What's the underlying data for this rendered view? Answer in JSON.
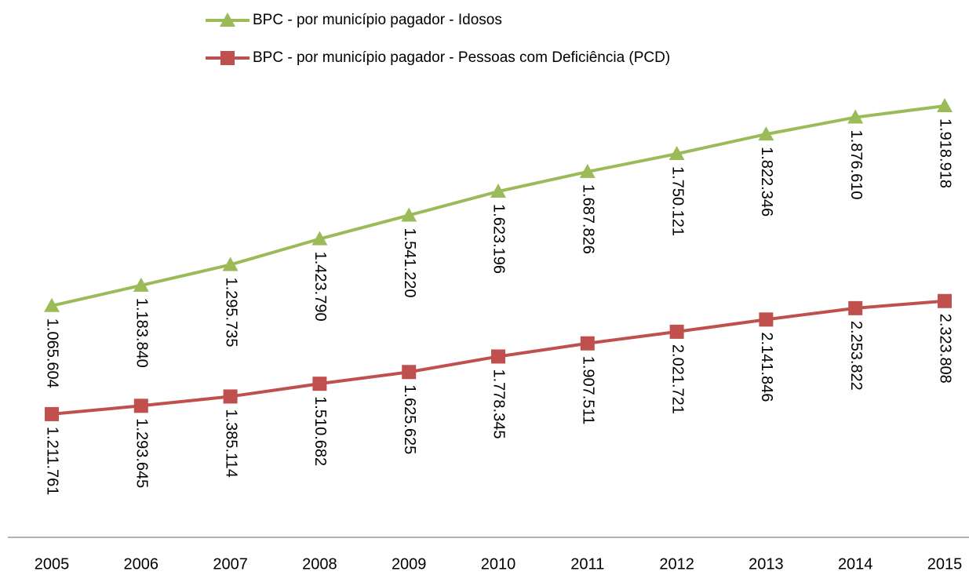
{
  "chart_data": {
    "type": "line",
    "stacked": true,
    "categories": [
      "2005",
      "2006",
      "2007",
      "2008",
      "2009",
      "2010",
      "2011",
      "2012",
      "2013",
      "2014",
      "2015"
    ],
    "series": [
      {
        "name": "BPC  - por município pagador - Idosos",
        "color": "#9bbb59",
        "marker": "triangle",
        "values": [
          1065604,
          1183840,
          1295735,
          1423790,
          1541220,
          1623196,
          1687826,
          1750121,
          1822346,
          1876610,
          1918918
        ],
        "value_labels": [
          "1.065.604",
          "1.183.840",
          "1.295.735",
          "1.423.790",
          "1.541.220",
          "1.623.196",
          "1.687.826",
          "1.750.121",
          "1.822.346",
          "1.876.610",
          "1.918.918"
        ]
      },
      {
        "name": "BPC  - por município pagador - Pessoas com Deficiência (PCD)",
        "color": "#c0504d",
        "marker": "square",
        "values": [
          1211761,
          1293645,
          1385114,
          1510682,
          1625625,
          1778345,
          1907511,
          2021721,
          2141846,
          2253822,
          2323808
        ],
        "value_labels": [
          "1.211.761",
          "1.293.645",
          "1.385.114",
          "1.510.682",
          "1.625.625",
          "1.778.345",
          "1.907.511",
          "2.021.721",
          "2.141.846",
          "2.253.822",
          "2.323.808"
        ]
      }
    ]
  }
}
